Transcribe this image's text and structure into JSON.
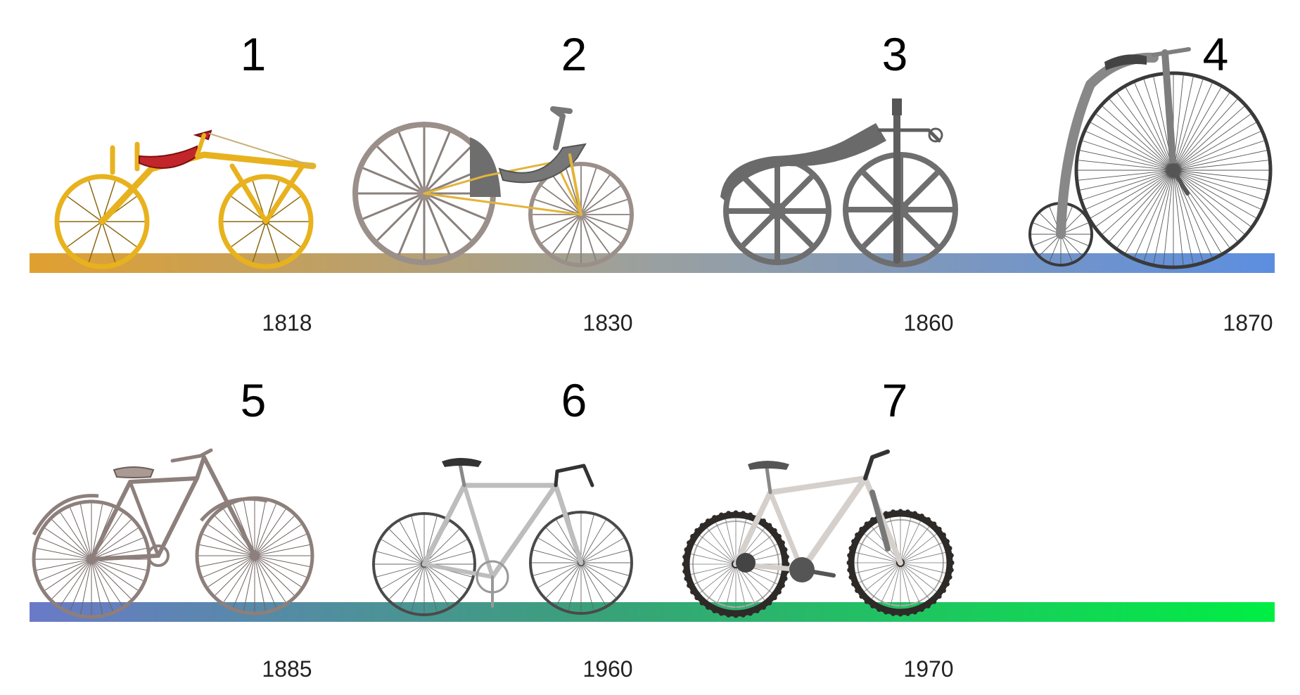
{
  "timeline": {
    "rows": [
      {
        "gradient": [
          "#e0a030",
          "#9aa0a0",
          "#5c8ee0"
        ],
        "items": [
          {
            "number": "1",
            "year": "1818",
            "bike": "draisine"
          },
          {
            "number": "2",
            "year": "1830",
            "bike": "tricycle"
          },
          {
            "number": "3",
            "year": "1860",
            "bike": "velocipede"
          },
          {
            "number": "4",
            "year": "1870",
            "bike": "penny-farthing"
          }
        ]
      },
      {
        "gradient": [
          "#6a7ac8",
          "#3aa07a",
          "#00ee44"
        ],
        "items": [
          {
            "number": "5",
            "year": "1885",
            "bike": "safety-bicycle"
          },
          {
            "number": "6",
            "year": "1960",
            "bike": "road-bike"
          },
          {
            "number": "7",
            "year": "1970",
            "bike": "mountain-bike"
          }
        ]
      }
    ]
  }
}
